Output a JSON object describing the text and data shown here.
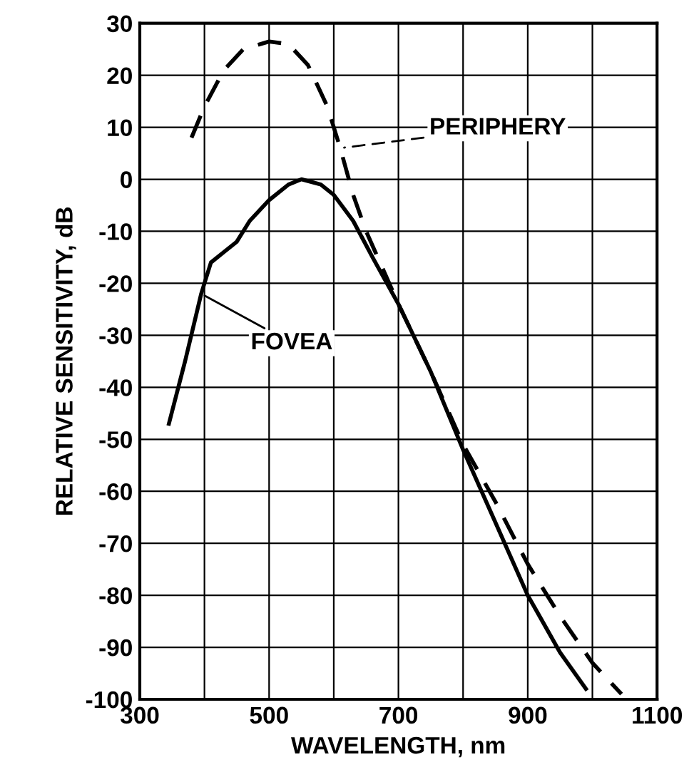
{
  "chart_data": {
    "type": "line",
    "xlabel": "WAVELENGTH, nm",
    "ylabel": "RELATIVE SENSITIVITY, dB",
    "xlim": [
      300,
      1100
    ],
    "ylim": [
      -100,
      30
    ],
    "xticks": [
      300,
      {
        "value": 400,
        "label": null
      },
      500,
      {
        "value": 600,
        "label": null
      },
      700,
      {
        "value": 800,
        "label": null
      },
      900,
      {
        "value": 1000,
        "label": null
      },
      1100
    ],
    "yticks": [
      -100,
      -90,
      -80,
      -70,
      -60,
      -50,
      -40,
      -30,
      -20,
      -10,
      0,
      10,
      20,
      30
    ],
    "grid": true,
    "marker": "none",
    "series": [
      {
        "name": "PERIPHERY",
        "color": "#000000",
        "line_style": "dashed",
        "x": [
          380,
          400,
          430,
          460,
          500,
          530,
          560,
          590,
          610,
          630,
          650,
          700,
          750,
          800,
          850,
          900,
          950,
          1000,
          1045
        ],
        "values": [
          8,
          14,
          21,
          25,
          26.5,
          26,
          22,
          14,
          6,
          -3,
          -10,
          -24,
          -37,
          -51,
          -62,
          -74,
          -84,
          -93,
          -99
        ]
      },
      {
        "name": "FOVEA",
        "color": "#000000",
        "line_style": "solid",
        "x": [
          345,
          370,
          395,
          410,
          430,
          450,
          470,
          500,
          530,
          550,
          580,
          600,
          630,
          660,
          700,
          750,
          800,
          850,
          900,
          950,
          990
        ],
        "values": [
          -47,
          -35,
          -22,
          -16,
          -14,
          -12,
          -8,
          -4,
          -1,
          0,
          -1,
          -3,
          -8,
          -15,
          -24,
          -37,
          -52,
          -66,
          -80,
          -91,
          -98
        ]
      }
    ]
  }
}
